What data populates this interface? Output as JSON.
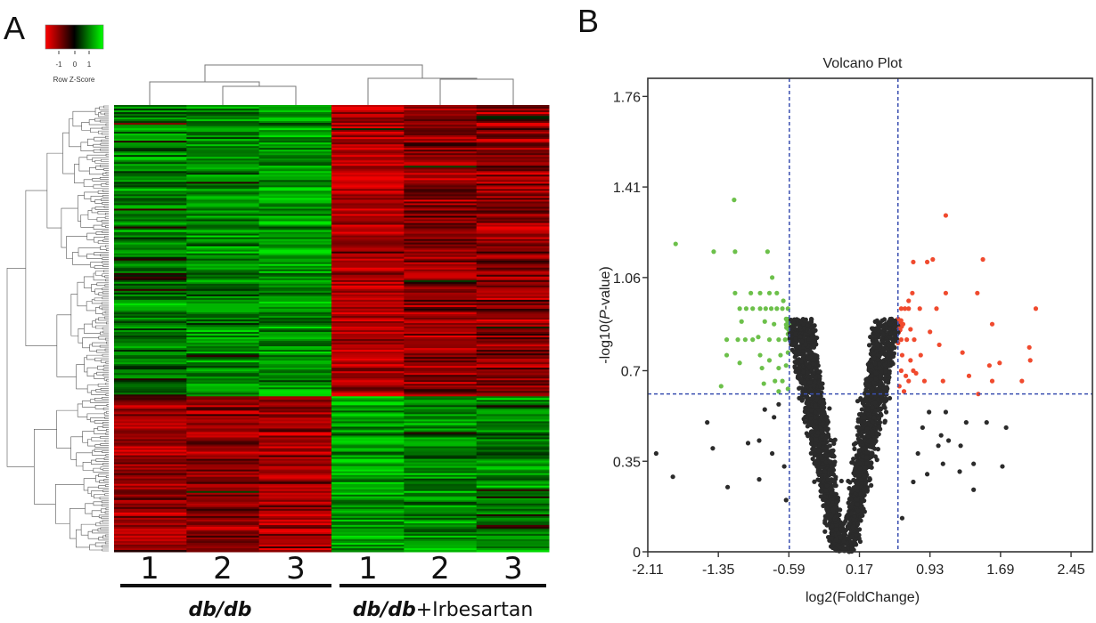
{
  "panels": {
    "a_label": "A",
    "b_label": "B"
  },
  "chart_data": [
    {
      "type": "heatmap",
      "title": "",
      "color_scale": {
        "label": "Row Z-Score",
        "ticks": [
          "-1",
          "0",
          "1"
        ],
        "low_color": "#ff0000",
        "mid_color": "#000000",
        "high_color": "#00ff00"
      },
      "columns": [
        "1",
        "2",
        "3",
        "1",
        "2",
        "3"
      ],
      "groups": [
        {
          "name_italic": "db/db",
          "suffix": "",
          "columns": [
            0,
            1,
            2
          ]
        },
        {
          "name_italic": "db/db",
          "suffix": "+Irbesartan",
          "columns": [
            3,
            4,
            5
          ]
        }
      ],
      "row_clusters": [
        {
          "row_fraction": 0.65,
          "mean_z": [
            0.5,
            0.6,
            0.75,
            -0.8,
            -0.6,
            -0.6
          ]
        },
        {
          "row_fraction": 0.35,
          "mean_z": [
            -0.7,
            -0.65,
            -0.75,
            0.75,
            0.6,
            0.55
          ]
        }
      ],
      "row_dendrogram": true,
      "column_dendrogram": true
    },
    {
      "type": "scatter",
      "title": "Volcano Plot",
      "xlabel": "log2(FoldChange)",
      "ylabel_prefix": "-log10(",
      "ylabel_italic": "P",
      "ylabel_suffix": "-value)",
      "x_ticks": [
        "-2.11",
        "-1.35",
        "-0.59",
        "0.17",
        "0.93",
        "1.69",
        "2.45"
      ],
      "y_ticks": [
        "0",
        "0.35",
        "0.7",
        "1.06",
        "1.41",
        "1.76"
      ],
      "xlim": [
        -2.11,
        2.68
      ],
      "ylim": [
        0,
        1.83
      ],
      "thresholds": {
        "fold_change": [
          -0.585,
          0.585
        ],
        "p_value": 0.61
      },
      "colors": {
        "down": "#6cc04a",
        "up": "#f04a2e",
        "ns": "#2b2b2b",
        "threshold_line": "#3a4fb0"
      },
      "series": [
        {
          "group": "down",
          "points": [
            [
              -1.81,
              1.19
            ],
            [
              -1.4,
              1.16
            ],
            [
              -1.17,
              1.16
            ],
            [
              -0.82,
              1.16
            ],
            [
              -1.18,
              1.36
            ],
            [
              -0.77,
              1.06
            ],
            [
              -1.17,
              1.0
            ],
            [
              -1.0,
              1.0
            ],
            [
              -0.9,
              1.0
            ],
            [
              -0.8,
              1.0
            ],
            [
              -0.72,
              1.0
            ],
            [
              -0.65,
              0.97
            ],
            [
              -1.12,
              0.94
            ],
            [
              -1.05,
              0.94
            ],
            [
              -0.98,
              0.94
            ],
            [
              -0.9,
              0.94
            ],
            [
              -0.84,
              0.94
            ],
            [
              -0.78,
              0.94
            ],
            [
              -0.72,
              0.94
            ],
            [
              -0.66,
              0.94
            ],
            [
              -0.6,
              0.94
            ],
            [
              -1.1,
              0.89
            ],
            [
              -0.85,
              0.89
            ],
            [
              -0.75,
              0.88
            ],
            [
              -0.62,
              0.9
            ],
            [
              -1.26,
              0.82
            ],
            [
              -1.14,
              0.82
            ],
            [
              -1.06,
              0.82
            ],
            [
              -0.98,
              0.82
            ],
            [
              -0.92,
              0.83
            ],
            [
              -0.8,
              0.82
            ],
            [
              -0.7,
              0.82
            ],
            [
              -0.63,
              0.82
            ],
            [
              -1.26,
              0.76
            ],
            [
              -0.9,
              0.76
            ],
            [
              -0.8,
              0.74
            ],
            [
              -0.68,
              0.76
            ],
            [
              -0.6,
              0.77
            ],
            [
              -1.12,
              0.73
            ],
            [
              -0.88,
              0.71
            ],
            [
              -0.7,
              0.71
            ],
            [
              -0.62,
              0.72
            ],
            [
              -1.32,
              0.64
            ],
            [
              -0.86,
              0.65
            ],
            [
              -0.74,
              0.66
            ],
            [
              -0.66,
              0.66
            ],
            [
              -0.6,
              0.63
            ],
            [
              -0.7,
              0.62
            ]
          ]
        },
        {
          "group": "up",
          "points": [
            [
              1.1,
              1.3
            ],
            [
              0.75,
              1.12
            ],
            [
              0.9,
              1.12
            ],
            [
              0.96,
              1.13
            ],
            [
              1.5,
              1.13
            ],
            [
              1.1,
              1.0
            ],
            [
              1.44,
              1.0
            ],
            [
              2.07,
              0.94
            ],
            [
              1.6,
              0.88
            ],
            [
              2.0,
              0.79
            ],
            [
              2.01,
              0.74
            ],
            [
              1.68,
              0.73
            ],
            [
              1.57,
              0.72
            ],
            [
              1.92,
              0.66
            ],
            [
              1.6,
              0.66
            ],
            [
              1.35,
              0.68
            ],
            [
              1.28,
              0.77
            ],
            [
              1.03,
              0.8
            ],
            [
              0.93,
              0.85
            ],
            [
              1.0,
              0.94
            ],
            [
              0.82,
              0.94
            ],
            [
              0.83,
              0.76
            ],
            [
              0.78,
              0.69
            ],
            [
              0.87,
              0.66
            ],
            [
              1.07,
              0.66
            ],
            [
              1.45,
              0.61
            ],
            [
              0.62,
              0.94
            ],
            [
              0.66,
              0.94
            ],
            [
              0.7,
              0.94
            ],
            [
              0.74,
              1.0
            ],
            [
              0.7,
              0.97
            ],
            [
              0.64,
              0.88
            ],
            [
              0.72,
              0.86
            ],
            [
              0.62,
              0.82
            ],
            [
              0.68,
              0.82
            ],
            [
              0.76,
              0.82
            ],
            [
              0.63,
              0.76
            ],
            [
              0.72,
              0.74
            ],
            [
              0.62,
              0.7
            ],
            [
              0.67,
              0.68
            ],
            [
              0.75,
              0.7
            ],
            [
              0.6,
              0.64
            ],
            [
              0.65,
              0.62
            ],
            [
              0.7,
              0.66
            ]
          ]
        },
        {
          "group": "ns",
          "points": [
            [
              -2.02,
              0.38
            ],
            [
              -1.84,
              0.29
            ],
            [
              -1.47,
              0.5
            ],
            [
              -1.41,
              0.4
            ],
            [
              -1.25,
              0.25
            ],
            [
              -1.03,
              0.42
            ],
            [
              -0.91,
              0.43
            ],
            [
              -0.91,
              0.28
            ],
            [
              -0.77,
              0.38
            ],
            [
              -0.64,
              0.33
            ],
            [
              -0.62,
              0.2
            ],
            [
              -0.85,
              0.55
            ],
            [
              -0.75,
              0.52
            ],
            [
              -0.7,
              0.57
            ],
            [
              1.1,
              0.54
            ],
            [
              1.32,
              0.5
            ],
            [
              1.54,
              0.5
            ],
            [
              1.75,
              0.48
            ],
            [
              1.05,
              0.45
            ],
            [
              1.13,
              0.43
            ],
            [
              1.26,
              0.41
            ],
            [
              1.07,
              0.34
            ],
            [
              1.25,
              0.31
            ],
            [
              1.4,
              0.34
            ],
            [
              1.71,
              0.33
            ],
            [
              1.4,
              0.24
            ],
            [
              0.92,
              0.54
            ],
            [
              1.02,
              0.41
            ],
            [
              0.63,
              0.13
            ],
            [
              0.85,
              0.48
            ],
            [
              0.8,
              0.38
            ],
            [
              0.9,
              0.3
            ],
            [
              0.75,
              0.27
            ]
          ]
        }
      ]
    }
  ]
}
